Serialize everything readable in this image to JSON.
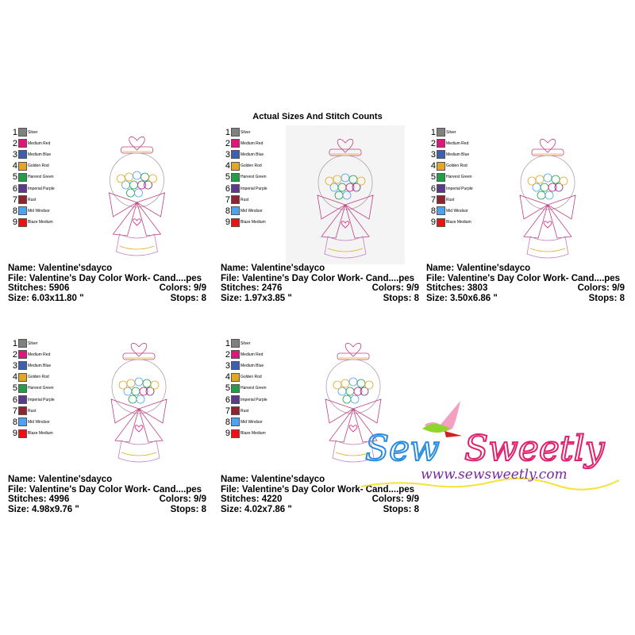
{
  "title": "Actual Sizes And Stitch Counts",
  "legend": [
    {
      "num": "1",
      "name": "Silver",
      "color": "#808080"
    },
    {
      "num": "2",
      "name": "Medium Red",
      "color": "#e0157a"
    },
    {
      "num": "3",
      "name": "Medium Blue",
      "color": "#3d5fae"
    },
    {
      "num": "4",
      "name": "Golden Rod",
      "color": "#e2a823"
    },
    {
      "num": "5",
      "name": "Harvest Green",
      "color": "#1fa048"
    },
    {
      "num": "6",
      "name": "Imperial Purple",
      "color": "#5b3a8c"
    },
    {
      "num": "7",
      "name": "Rust",
      "color": "#8e2430"
    },
    {
      "num": "8",
      "name": "Mid Windsor",
      "color": "#4da3f2"
    },
    {
      "num": "9",
      "name": "Blaze Medium",
      "color": "#ee1111"
    }
  ],
  "designs": [
    {
      "name": "Name: Valentine'sdayco",
      "file": "File: Valentine's Day Color Work- Cand....pes",
      "stitches": "Stitches: 5906",
      "colors": "Colors: 9/9",
      "size": "Size: 6.03x11.80 \"",
      "stops": "Stops: 8"
    },
    {
      "name": "Name: Valentine'sdayco",
      "file": "File: Valentine's Day Color Work- Cand....pes",
      "stitches": "Stitches: 2476",
      "colors": "Colors: 9/9",
      "size": "Size: 1.97x3.85 \"",
      "stops": "Stops: 8"
    },
    {
      "name": "Name: Valentine'sdayco",
      "file": "File: Valentine's Day Color Work- Cand....pes",
      "stitches": "Stitches: 3803",
      "colors": "Colors: 9/9",
      "size": "Size: 3.50x6.86 \"",
      "stops": "Stops: 8"
    },
    {
      "name": "Name: Valentine'sdayco",
      "file": "File: Valentine's Day Color Work- Cand....pes",
      "stitches": "Stitches: 4996",
      "colors": "Colors: 9/9",
      "size": "Size: 4.98x9.76 \"",
      "stops": "Stops: 8"
    },
    {
      "name": "Name: Valentine'sdayco",
      "file": "File: Valentine's Day Color Work- Cand....pes",
      "stitches": "Stitches: 4220",
      "colors": "Colors: 9/9",
      "size": "Size: 4.02x7.86 \"",
      "stops": "Stops: 8"
    }
  ],
  "logo": {
    "brand": "Sew Sweetly",
    "url": "www.sewsweetly.com",
    "colors": {
      "sew": "#2a8de0",
      "sweetly": "#e0206e",
      "url": "#7a2aa0",
      "thread": "#f5e23a"
    }
  }
}
